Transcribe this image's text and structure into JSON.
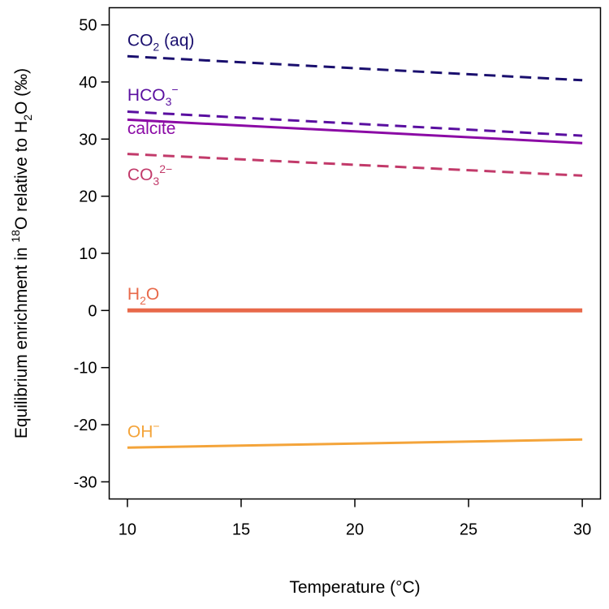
{
  "chart_data": {
    "type": "line",
    "title": "",
    "xlabel": "Temperature (°C)",
    "ylabel": {
      "before_sup": "Equilibrium enrichment in ",
      "sup": "18",
      "mid": "O relative to H",
      "sub": "2",
      "after": "O (‰)"
    },
    "xlim": [
      9.2,
      30.8
    ],
    "ylim": [
      -33,
      53
    ],
    "x_ticks": [
      10,
      15,
      20,
      25,
      30
    ],
    "y_ticks": [
      -30,
      -20,
      -10,
      0,
      10,
      20,
      30,
      40,
      50
    ],
    "y_tick_labels": [
      "-30",
      "-20",
      "-10",
      "0",
      "10",
      "20",
      "30",
      "40",
      "50"
    ],
    "series": [
      {
        "name": "CO2 (aq)",
        "label_parts": [
          [
            "CO",
            ""
          ],
          [
            "2",
            "sub"
          ],
          [
            " (aq)",
            ""
          ]
        ],
        "color": "#1a0f6e",
        "dash": "dashed",
        "width": 3,
        "x": [
          10,
          30
        ],
        "y": [
          44.5,
          40.3
        ],
        "label_at": [
          10,
          46.3
        ]
      },
      {
        "name": "HCO3-",
        "label_parts": [
          [
            "HCO",
            ""
          ],
          [
            "3",
            "sub"
          ],
          [
            "−",
            "sup"
          ]
        ],
        "color": "#5a0fa0",
        "dash": "dashed",
        "width": 3,
        "x": [
          10,
          30
        ],
        "y": [
          34.8,
          30.6
        ],
        "label_at": [
          10,
          36.7
        ]
      },
      {
        "name": "calcite",
        "label_parts": [
          [
            "calcite",
            ""
          ]
        ],
        "color": "#8b0aa5",
        "dash": "solid",
        "width": 3,
        "x": [
          10,
          30
        ],
        "y": [
          33.4,
          29.3
        ],
        "label_at": [
          10,
          30.9
        ]
      },
      {
        "name": "CO3 2-",
        "label_parts": [
          [
            "CO",
            ""
          ],
          [
            "3",
            "sub"
          ],
          [
            "2−",
            "sup"
          ]
        ],
        "color": "#c23a6a",
        "dash": "dashed",
        "width": 3,
        "x": [
          10,
          30
        ],
        "y": [
          27.4,
          23.6
        ],
        "label_at": [
          10,
          22.8
        ]
      },
      {
        "name": "H2O",
        "label_parts": [
          [
            "H",
            ""
          ],
          [
            "2",
            "sub"
          ],
          [
            "O",
            ""
          ]
        ],
        "color": "#e8694a",
        "dash": "solid",
        "width": 5,
        "x": [
          10,
          30
        ],
        "y": [
          0,
          0
        ],
        "label_at": [
          10,
          1.9
        ]
      },
      {
        "name": "OH-",
        "label_parts": [
          [
            "OH",
            ""
          ],
          [
            "−",
            "sup"
          ]
        ],
        "color": "#f4a43a",
        "dash": "solid",
        "width": 3,
        "x": [
          10,
          30
        ],
        "y": [
          -24.0,
          -22.6
        ],
        "label_at": [
          10,
          -22.2
        ]
      }
    ]
  }
}
